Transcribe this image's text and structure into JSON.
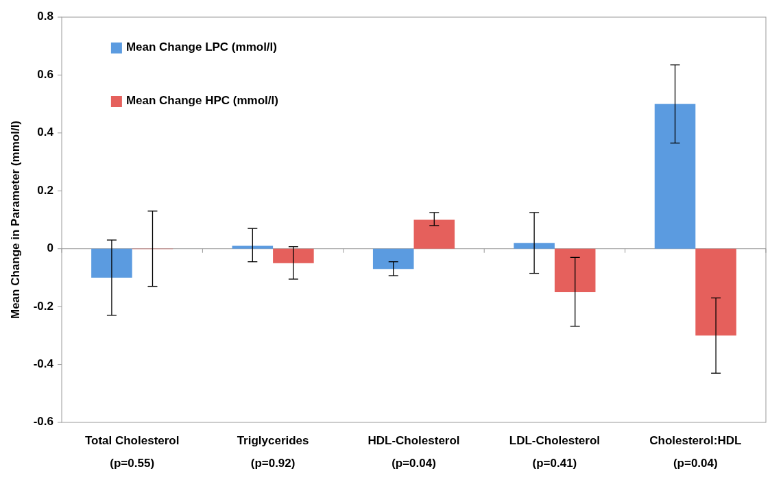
{
  "chart_data": {
    "type": "bar",
    "ylabel": "Mean Change in Parameter (mmol/l)",
    "categories": [
      "Total Cholesterol\n(p=0.55)",
      "Triglycerides\n(p=0.92)",
      "HDL-Cholesterol\n(p=0.04)",
      "LDL-Cholesterol\n(p=0.41)",
      "Cholesterol:HDL\n(p=0.04)"
    ],
    "series": [
      {
        "name": "Mean Change LPC (mmol/l)",
        "color": "#5b9be0",
        "values": [
          -0.1,
          0.01,
          -0.07,
          0.02,
          0.5
        ],
        "errors": [
          [
            -0.23,
            0.03
          ],
          [
            -0.045,
            0.07
          ],
          [
            -0.093,
            -0.045
          ],
          [
            -0.085,
            0.125
          ],
          [
            0.365,
            0.635
          ]
        ]
      },
      {
        "name": "Mean Change HPC (mmol/l)",
        "color": "#e5605c",
        "values": [
          0,
          -0.05,
          0.1,
          -0.15,
          -0.3
        ],
        "errors": [
          [
            -0.13,
            0.13
          ],
          [
            -0.105,
            0.007
          ],
          [
            0.08,
            0.125
          ],
          [
            -0.268,
            -0.03
          ],
          [
            -0.43,
            -0.17
          ]
        ]
      }
    ],
    "ylim": [
      -0.6,
      0.8
    ],
    "yticks": [
      {
        "value": -0.6,
        "label": "-0.6"
      },
      {
        "value": -0.4,
        "label": "-0.4"
      },
      {
        "value": -0.2,
        "label": "-0.2"
      },
      {
        "value": 0,
        "label": "0"
      },
      {
        "value": 0.2,
        "label": "0.2"
      },
      {
        "value": 0.4,
        "label": "0.4"
      },
      {
        "value": 0.6,
        "label": "0.6"
      },
      {
        "value": 0.8,
        "label": "0.8"
      }
    ],
    "legend": "top left"
  }
}
